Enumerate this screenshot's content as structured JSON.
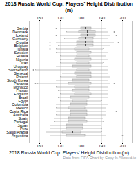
{
  "chart_data": {
    "type": "box",
    "orientation": "horizontal",
    "title": "2018 Russia World Cup: Players' Height Distribution (m)",
    "xlabel": "2018 Russia World Cup: Players' Height Distribution (m)",
    "annotation": "Data from FIFA  Chart by Copy Is Allowed.io",
    "categories": [
      "Serbia",
      "Denmark",
      "Iceland",
      "Germany",
      "Croatia",
      "Belgium",
      "Tunisia",
      "Sweden",
      "Russia",
      "Nigeria",
      "Iran",
      "Uruguay",
      "Switzerland",
      "Senegal",
      "Poland",
      "South Korea",
      "Panama",
      "Morocco",
      "France",
      "England",
      "Brazil",
      "Egypt",
      "Colombia",
      "Mexico",
      "Costa Rica",
      "Australia",
      "Spain",
      "Portugal",
      "Japan",
      "Peru",
      "Saudi Arabia",
      "Argentina"
    ],
    "boxes": [
      {
        "med": 182,
        "q1": 180,
        "q3": 185,
        "whislo": 170,
        "whishi": 192,
        "fliers": [
          168
        ]
      },
      {
        "med": 183,
        "q1": 179,
        "q3": 187,
        "whislo": 173,
        "whishi": 193,
        "fliers": [
          196
        ]
      },
      {
        "med": 183,
        "q1": 180,
        "q3": 187,
        "whislo": 170,
        "whishi": 194,
        "fliers": [
          168,
          197
        ]
      },
      {
        "med": 182,
        "q1": 179,
        "q3": 186,
        "whislo": 172,
        "whishi": 193,
        "fliers": []
      },
      {
        "med": 182,
        "q1": 178,
        "q3": 186,
        "whislo": 168,
        "whishi": 196,
        "fliers": [
          165,
          198
        ]
      },
      {
        "med": 182,
        "q1": 178,
        "q3": 186,
        "whislo": 169,
        "whishi": 194,
        "fliers": [
          165
        ]
      },
      {
        "med": 181,
        "q1": 177,
        "q3": 184,
        "whislo": 168,
        "whishi": 191,
        "fliers": [
          165
        ]
      },
      {
        "med": 181,
        "q1": 178,
        "q3": 185,
        "whislo": 168,
        "whishi": 193,
        "fliers": []
      },
      {
        "med": 181,
        "q1": 178,
        "q3": 184,
        "whislo": 170,
        "whishi": 192,
        "fliers": []
      },
      {
        "med": 181,
        "q1": 177,
        "q3": 185,
        "whislo": 170,
        "whishi": 193,
        "fliers": []
      },
      {
        "med": 181,
        "q1": 178,
        "q3": 184,
        "whislo": 170,
        "whishi": 191,
        "fliers": []
      },
      {
        "med": 181,
        "q1": 176,
        "q3": 185,
        "whislo": 168,
        "whishi": 193,
        "fliers": []
      },
      {
        "med": 181,
        "q1": 178,
        "q3": 184,
        "whislo": 158,
        "whishi": 193,
        "fliers": [
          157
        ]
      },
      {
        "med": 181,
        "q1": 177,
        "q3": 185,
        "whislo": 171,
        "whishi": 193,
        "fliers": []
      },
      {
        "med": 181,
        "q1": 178,
        "q3": 185,
        "whislo": 170,
        "whishi": 194,
        "fliers": []
      },
      {
        "med": 180,
        "q1": 176,
        "q3": 184,
        "whislo": 168,
        "whishi": 193,
        "fliers": []
      },
      {
        "med": 180,
        "q1": 174,
        "q3": 185,
        "whislo": 159,
        "whishi": 194,
        "fliers": [
          158,
          196
        ]
      },
      {
        "med": 180,
        "q1": 177,
        "q3": 184,
        "whislo": 168,
        "whishi": 193,
        "fliers": []
      },
      {
        "med": 180,
        "q1": 176,
        "q3": 184,
        "whislo": 169,
        "whishi": 193,
        "fliers": []
      },
      {
        "med": 180,
        "q1": 177,
        "q3": 185,
        "whislo": 170,
        "whishi": 193,
        "fliers": []
      },
      {
        "med": 180,
        "q1": 175,
        "q3": 184,
        "whislo": 169,
        "whishi": 193,
        "fliers": []
      },
      {
        "med": 179,
        "q1": 176,
        "q3": 183,
        "whislo": 170,
        "whishi": 190,
        "fliers": []
      },
      {
        "med": 179,
        "q1": 175,
        "q3": 183,
        "whislo": 168,
        "whishi": 193,
        "fliers": []
      },
      {
        "med": 178,
        "q1": 174,
        "q3": 182,
        "whislo": 168,
        "whishi": 192,
        "fliers": []
      },
      {
        "med": 178,
        "q1": 175,
        "q3": 183,
        "whislo": 168,
        "whishi": 192,
        "fliers": [
          197
        ]
      },
      {
        "med": 179,
        "q1": 175,
        "q3": 183,
        "whislo": 168,
        "whishi": 192,
        "fliers": []
      },
      {
        "med": 178,
        "q1": 174,
        "q3": 182,
        "whislo": 167,
        "whishi": 191,
        "fliers": []
      },
      {
        "med": 178,
        "q1": 174,
        "q3": 183,
        "whislo": 167,
        "whishi": 191,
        "fliers": []
      },
      {
        "med": 177,
        "q1": 173,
        "q3": 181,
        "whislo": 165,
        "whishi": 190,
        "fliers": []
      },
      {
        "med": 177,
        "q1": 173,
        "q3": 181,
        "whislo": 165,
        "whishi": 190,
        "fliers": []
      },
      {
        "med": 176,
        "q1": 171,
        "q3": 180,
        "whislo": 163,
        "whishi": 190,
        "fliers": []
      },
      {
        "med": 178,
        "q1": 173,
        "q3": 182,
        "whislo": 165,
        "whishi": 192,
        "fliers": [
          200
        ]
      }
    ],
    "color": "#d9d9d9",
    "xlim": [
      155,
      205
    ],
    "xticks": [
      160,
      170,
      180,
      190,
      200
    ],
    "grid": true
  }
}
